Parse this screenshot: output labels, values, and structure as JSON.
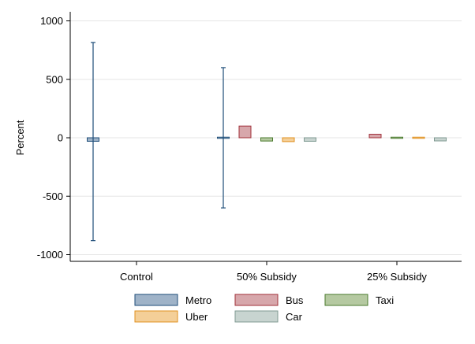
{
  "chart_data": {
    "type": "bar",
    "ylabel": "Percent",
    "ylim": [
      -1000,
      1000
    ],
    "yticks": [
      -1000,
      -500,
      0,
      500,
      1000
    ],
    "grid": true,
    "legend_position": "bottom",
    "categories": [
      "Control",
      "50% Subsidy",
      "25% Subsidy"
    ],
    "series": [
      {
        "name": "Metro",
        "color": "#9fb3c8",
        "stroke": "#1f4e79",
        "values": [
          -30,
          5,
          null
        ],
        "error_low": [
          -880,
          -600,
          null
        ],
        "error_high": [
          815,
          600,
          null
        ]
      },
      {
        "name": "Bus",
        "color": "#d7a7ab",
        "stroke": "#a0303a",
        "values": [
          null,
          100,
          30
        ],
        "error_low": [
          null,
          null,
          null
        ],
        "error_high": [
          null,
          null,
          null
        ]
      },
      {
        "name": "Taxi",
        "color": "#b5c9a1",
        "stroke": "#4a7a2d",
        "values": [
          null,
          -28,
          -3
        ],
        "error_low": [
          null,
          null,
          null
        ],
        "error_high": [
          null,
          null,
          null
        ]
      },
      {
        "name": "Uber",
        "color": "#f4cf98",
        "stroke": "#e0901f",
        "values": [
          null,
          -33,
          -3
        ],
        "error_low": [
          null,
          null,
          null
        ],
        "error_high": [
          null,
          null,
          null
        ]
      },
      {
        "name": "Car",
        "color": "#c8d4d0",
        "stroke": "#7f9a92",
        "values": [
          null,
          -30,
          -27
        ],
        "error_low": [
          null,
          null,
          null
        ],
        "error_high": [
          null,
          null,
          null
        ]
      }
    ]
  }
}
